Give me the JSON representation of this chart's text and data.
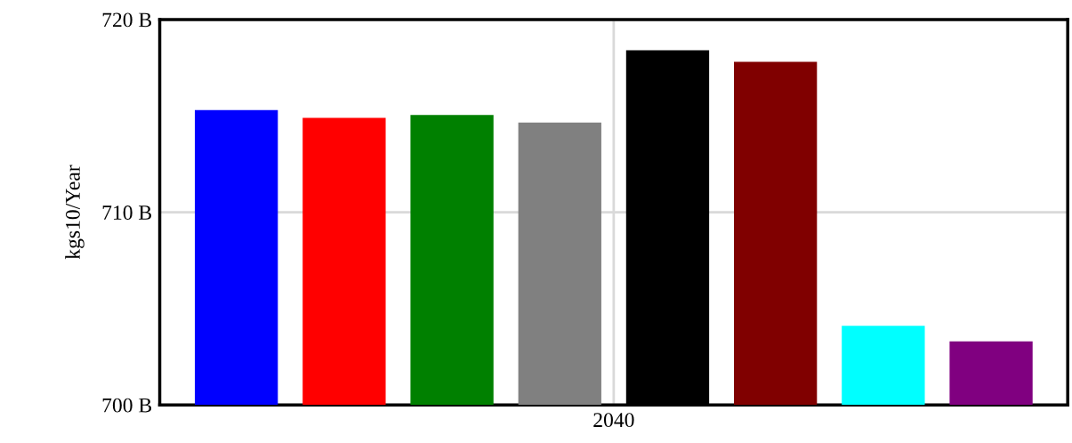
{
  "chart_data": {
    "type": "bar",
    "ylabel": "kgs10/Year",
    "categories": [
      "2040"
    ],
    "series": [
      {
        "color": "#0000ff",
        "values": [
          715.3
        ]
      },
      {
        "color": "#ff0000",
        "values": [
          714.9
        ]
      },
      {
        "color": "#008000",
        "values": [
          715.05
        ]
      },
      {
        "color": "#808080",
        "values": [
          714.65
        ]
      },
      {
        "color": "#000000",
        "values": [
          718.4
        ]
      },
      {
        "color": "#800000",
        "values": [
          717.8
        ]
      },
      {
        "color": "#00ffff",
        "values": [
          704.1
        ]
      },
      {
        "color": "#800080",
        "values": [
          703.3
        ]
      }
    ],
    "ylim": [
      700,
      720
    ],
    "yticks": [
      {
        "value": 700,
        "label": "700 B"
      },
      {
        "value": 710,
        "label": "710 B"
      },
      {
        "value": 720,
        "label": "720 B"
      }
    ],
    "grid": true
  }
}
